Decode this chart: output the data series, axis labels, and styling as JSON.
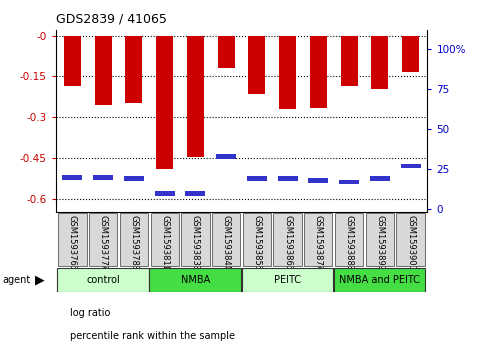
{
  "title": "GDS2839 / 41065",
  "samples": [
    "GSM159376",
    "GSM159377",
    "GSM159378",
    "GSM159381",
    "GSM159383",
    "GSM159384",
    "GSM159385",
    "GSM159386",
    "GSM159387",
    "GSM159388",
    "GSM159389",
    "GSM159390"
  ],
  "log_ratios": [
    -0.185,
    -0.255,
    -0.248,
    -0.49,
    -0.445,
    -0.118,
    -0.215,
    -0.27,
    -0.265,
    -0.185,
    -0.195,
    -0.135
  ],
  "percentile_ranks": [
    20,
    20,
    19,
    10,
    10,
    33,
    19,
    19,
    18,
    17,
    19,
    27
  ],
  "bar_color": "#cc0000",
  "percentile_color": "#3333cc",
  "ylim_left": [
    -0.65,
    0.02
  ],
  "ylim_right": [
    -2.0,
    112.0
  ],
  "yticks_left": [
    0.0,
    -0.15,
    -0.3,
    -0.45,
    -0.6
  ],
  "yticks_right": [
    0,
    25,
    50,
    75,
    100
  ],
  "groups": [
    {
      "label": "control",
      "start": 0,
      "end": 3,
      "color": "#ccffcc"
    },
    {
      "label": "NMBA",
      "start": 3,
      "end": 6,
      "color": "#44dd44"
    },
    {
      "label": "PEITC",
      "start": 6,
      "end": 9,
      "color": "#ccffcc"
    },
    {
      "label": "NMBA and PEITC",
      "start": 9,
      "end": 12,
      "color": "#44dd44"
    }
  ],
  "agent_label": "agent",
  "legend_items": [
    {
      "label": "log ratio",
      "color": "#cc0000"
    },
    {
      "label": "percentile rank within the sample",
      "color": "#3333cc"
    }
  ],
  "tick_color_left": "#cc0000",
  "tick_color_right": "#0000cc",
  "bar_width": 0.55,
  "plot_bg": "#ffffff"
}
